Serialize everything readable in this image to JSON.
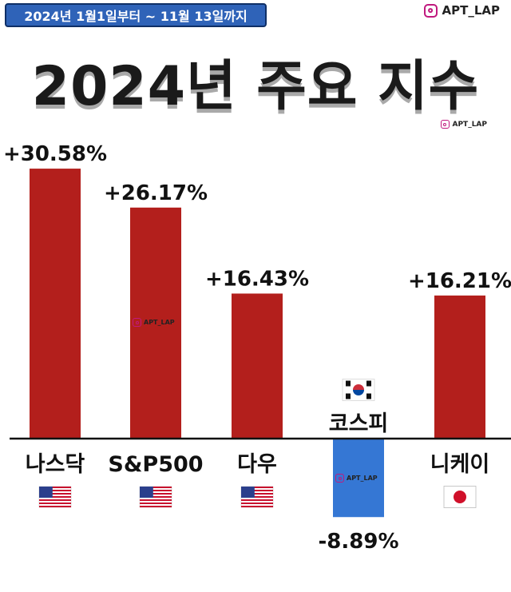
{
  "header": {
    "date_range": "2024년 1월1일부터 ~ 11월 13일까지",
    "brand": "APT_LAP",
    "title": "2024년 주요 지수"
  },
  "colors": {
    "positive_bar": "#b31f1c",
    "negative_bar": "#3577d4",
    "badge_bg": "#2f63b8"
  },
  "chart_data": {
    "type": "bar",
    "categories": [
      "나스닥",
      "S&P500",
      "다우",
      "코스피",
      "니케이"
    ],
    "values": [
      30.58,
      26.17,
      16.43,
      -8.89,
      16.21
    ],
    "value_labels": [
      "+30.58%",
      "+26.17%",
      "+16.43%",
      "-8.89%",
      "+16.21%"
    ],
    "flags": [
      "us-flag-icon",
      "us-flag-icon",
      "us-flag-icon",
      "kr-flag-icon",
      "jp-flag-icon"
    ],
    "unit": "%",
    "ylim": [
      -10,
      32
    ],
    "grid": false,
    "legend": "none"
  }
}
